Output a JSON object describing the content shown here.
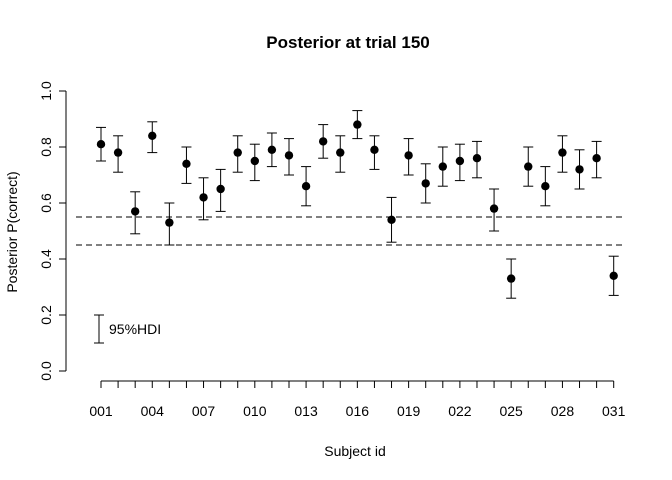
{
  "chart_data": {
    "type": "scatter",
    "title": "Posterior at trial 150",
    "xlabel": "Subject id",
    "ylabel": "Posterior P(correct)",
    "ylim": [
      0,
      1
    ],
    "y_ticks": [
      0.0,
      0.2,
      0.4,
      0.6,
      0.8,
      1.0
    ],
    "y_tick_labels": [
      "0.0",
      "0.2",
      "0.4",
      "0.6",
      "0.8",
      "1.0"
    ],
    "x_tick_labels": [
      "001",
      "004",
      "007",
      "010",
      "013",
      "016",
      "019",
      "022",
      "025",
      "028",
      "031"
    ],
    "reference_lines": [
      0.55,
      0.45
    ],
    "interval_legend": {
      "label": "95%HDI",
      "lower": 0.1,
      "upper": 0.2
    },
    "grid": false,
    "subjects": [
      "001",
      "002",
      "003",
      "004",
      "005",
      "006",
      "007",
      "008",
      "009",
      "010",
      "011",
      "012",
      "013",
      "014",
      "015",
      "016",
      "017",
      "018",
      "019",
      "020",
      "021",
      "022",
      "023",
      "024",
      "025",
      "026",
      "027",
      "028",
      "029",
      "030",
      "031"
    ],
    "values": [
      0.81,
      0.78,
      0.57,
      0.84,
      0.53,
      0.74,
      0.62,
      0.65,
      0.78,
      0.75,
      0.79,
      0.77,
      0.66,
      0.82,
      0.78,
      0.88,
      0.79,
      0.54,
      0.77,
      0.67,
      0.73,
      0.75,
      0.76,
      0.58,
      0.33,
      0.73,
      0.66,
      0.78,
      0.72,
      0.76,
      0.34
    ],
    "hdi_lower": [
      0.75,
      0.71,
      0.49,
      0.78,
      0.45,
      0.67,
      0.54,
      0.57,
      0.71,
      0.68,
      0.73,
      0.7,
      0.59,
      0.76,
      0.71,
      0.83,
      0.72,
      0.46,
      0.7,
      0.6,
      0.66,
      0.68,
      0.69,
      0.5,
      0.26,
      0.66,
      0.59,
      0.71,
      0.65,
      0.69,
      0.27
    ],
    "hdi_upper": [
      0.87,
      0.84,
      0.64,
      0.89,
      0.6,
      0.8,
      0.69,
      0.72,
      0.84,
      0.81,
      0.85,
      0.83,
      0.73,
      0.88,
      0.84,
      0.93,
      0.84,
      0.62,
      0.83,
      0.74,
      0.8,
      0.81,
      0.82,
      0.65,
      0.4,
      0.8,
      0.73,
      0.84,
      0.79,
      0.82,
      0.41
    ]
  }
}
